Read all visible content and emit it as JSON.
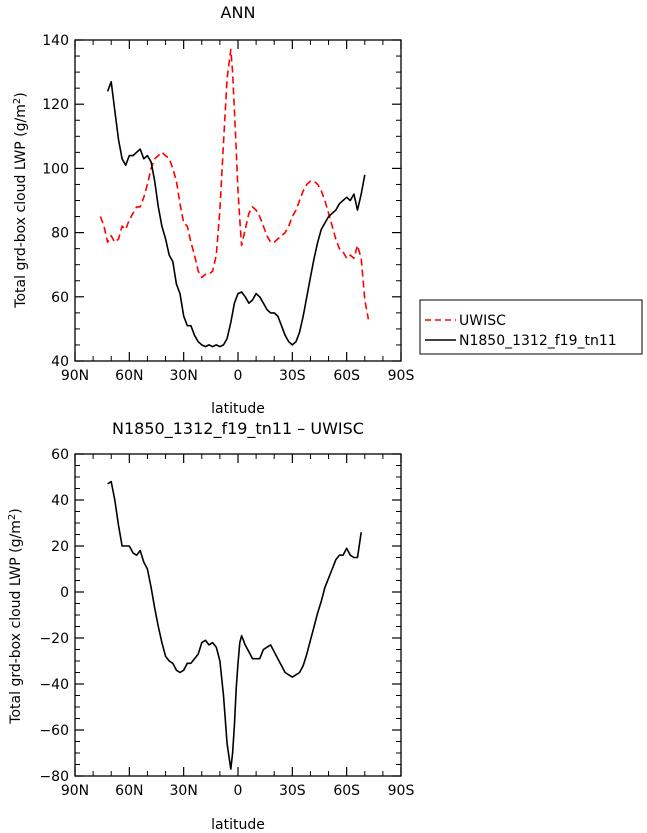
{
  "chart_data": [
    {
      "type": "line",
      "title": "ANN",
      "xlabel": "latitude",
      "ylabel": "Total grd-box cloud LWP (g/m²)",
      "xlim": [
        -90,
        90
      ],
      "ylim": [
        40,
        140
      ],
      "x_ticks": [
        -90,
        -60,
        -30,
        0,
        30,
        60,
        90
      ],
      "x_tick_labels": [
        "90N",
        "60N",
        "30N",
        "0",
        "30S",
        "60S",
        "90S"
      ],
      "y_ticks": [
        40,
        60,
        80,
        100,
        120,
        140
      ],
      "y_tick_labels": [
        "40",
        "60",
        "80",
        "100",
        "120",
        "140"
      ],
      "legend": "outside right",
      "series": [
        {
          "name": "UWISC",
          "color": "#ff0000",
          "style": "dashed",
          "points": [
            [
              -76,
              85
            ],
            [
              -74,
              82
            ],
            [
              -72,
              77
            ],
            [
              -70,
              79
            ],
            [
              -68,
              77
            ],
            [
              -66,
              78
            ],
            [
              -64,
              82
            ],
            [
              -62,
              81
            ],
            [
              -60,
              84
            ],
            [
              -58,
              86
            ],
            [
              -56,
              88
            ],
            [
              -54,
              88
            ],
            [
              -52,
              91
            ],
            [
              -50,
              95
            ],
            [
              -48,
              100
            ],
            [
              -46,
              103
            ],
            [
              -44,
              104
            ],
            [
              -42,
              105
            ],
            [
              -40,
              104
            ],
            [
              -38,
              103
            ],
            [
              -36,
              100
            ],
            [
              -34,
              96
            ],
            [
              -32,
              89
            ],
            [
              -30,
              83
            ],
            [
              -28,
              82
            ],
            [
              -26,
              77
            ],
            [
              -24,
              73
            ],
            [
              -22,
              68
            ],
            [
              -20,
              66
            ],
            [
              -18,
              67
            ],
            [
              -16,
              67
            ],
            [
              -14,
              68
            ],
            [
              -12,
              73
            ],
            [
              -10,
              87
            ],
            [
              -8,
              108
            ],
            [
              -6,
              128
            ],
            [
              -4,
              137
            ],
            [
              -3,
              130
            ],
            [
              -2,
              118
            ],
            [
              -1,
              106
            ],
            [
              0,
              93
            ],
            [
              1,
              84
            ],
            [
              2,
              76
            ],
            [
              4,
              81
            ],
            [
              6,
              86
            ],
            [
              8,
              88
            ],
            [
              10,
              87
            ],
            [
              12,
              85
            ],
            [
              14,
              82
            ],
            [
              16,
              79
            ],
            [
              18,
              77
            ],
            [
              20,
              77
            ],
            [
              22,
              78
            ],
            [
              24,
              79
            ],
            [
              26,
              80
            ],
            [
              28,
              82
            ],
            [
              30,
              85
            ],
            [
              32,
              87
            ],
            [
              34,
              90
            ],
            [
              36,
              93
            ],
            [
              38,
              95
            ],
            [
              40,
              96
            ],
            [
              42,
              96
            ],
            [
              44,
              95
            ],
            [
              46,
              93
            ],
            [
              48,
              90
            ],
            [
              50,
              86
            ],
            [
              52,
              82
            ],
            [
              54,
              78
            ],
            [
              56,
              75
            ],
            [
              58,
              74
            ],
            [
              60,
              72
            ],
            [
              62,
              73
            ],
            [
              64,
              72
            ],
            [
              66,
              76
            ],
            [
              68,
              72
            ],
            [
              70,
              59
            ],
            [
              72,
              53
            ]
          ]
        },
        {
          "name": "N1850_1312_f19_tn11",
          "color": "#000000",
          "style": "solid",
          "points": [
            [
              -72,
              124
            ],
            [
              -70,
              127
            ],
            [
              -68,
              118
            ],
            [
              -66,
              109
            ],
            [
              -64,
              103
            ],
            [
              -62,
              101
            ],
            [
              -60,
              104
            ],
            [
              -58,
              104
            ],
            [
              -56,
              105
            ],
            [
              -54,
              106
            ],
            [
              -52,
              103
            ],
            [
              -50,
              104
            ],
            [
              -48,
              102
            ],
            [
              -46,
              96
            ],
            [
              -44,
              88
            ],
            [
              -42,
              82
            ],
            [
              -40,
              78
            ],
            [
              -38,
              73
            ],
            [
              -36,
              71
            ],
            [
              -34,
              64
            ],
            [
              -32,
              61
            ],
            [
              -30,
              54
            ],
            [
              -28,
              51
            ],
            [
              -26,
              51
            ],
            [
              -24,
              48
            ],
            [
              -22,
              46
            ],
            [
              -20,
              45
            ],
            [
              -18,
              44.5
            ],
            [
              -16,
              45
            ],
            [
              -14,
              44.5
            ],
            [
              -12,
              45
            ],
            [
              -10,
              44.5
            ],
            [
              -8,
              45
            ],
            [
              -6,
              47
            ],
            [
              -4,
              52
            ],
            [
              -2,
              58
            ],
            [
              0,
              61
            ],
            [
              2,
              61.5
            ],
            [
              4,
              60
            ],
            [
              6,
              58
            ],
            [
              8,
              59
            ],
            [
              10,
              61
            ],
            [
              12,
              60
            ],
            [
              14,
              58
            ],
            [
              16,
              56
            ],
            [
              18,
              55
            ],
            [
              20,
              55
            ],
            [
              22,
              54
            ],
            [
              24,
              51
            ],
            [
              26,
              48
            ],
            [
              28,
              46
            ],
            [
              30,
              45
            ],
            [
              32,
              46
            ],
            [
              34,
              49
            ],
            [
              36,
              54
            ],
            [
              38,
              60
            ],
            [
              40,
              66
            ],
            [
              42,
              72
            ],
            [
              44,
              77
            ],
            [
              46,
              81
            ],
            [
              48,
              83
            ],
            [
              50,
              85
            ],
            [
              52,
              86
            ],
            [
              54,
              87
            ],
            [
              56,
              89
            ],
            [
              58,
              90
            ],
            [
              60,
              91
            ],
            [
              62,
              90
            ],
            [
              64,
              92
            ],
            [
              66,
              87
            ],
            [
              68,
              92
            ],
            [
              70,
              98
            ]
          ]
        }
      ]
    },
    {
      "type": "line",
      "title": "N1850_1312_f19_tn11 – UWISC",
      "xlabel": "latitude",
      "ylabel": "Total grd-box cloud LWP (g/m²)",
      "xlim": [
        -90,
        90
      ],
      "ylim": [
        -80,
        60
      ],
      "x_ticks": [
        -90,
        -60,
        -30,
        0,
        30,
        60,
        90
      ],
      "x_tick_labels": [
        "90N",
        "60N",
        "30N",
        "0",
        "30S",
        "60S",
        "90S"
      ],
      "y_ticks": [
        -80,
        -60,
        -40,
        -20,
        0,
        20,
        40,
        60
      ],
      "y_tick_labels": [
        "−80",
        "−60",
        "−40",
        "−20",
        "0",
        "20",
        "40",
        "60"
      ],
      "series": [
        {
          "color": "#000000",
          "style": "solid",
          "points": [
            [
              -72,
              47
            ],
            [
              -70,
              48
            ],
            [
              -68,
              40
            ],
            [
              -66,
              29
            ],
            [
              -64,
              20
            ],
            [
              -62,
              20
            ],
            [
              -60,
              20
            ],
            [
              -58,
              17
            ],
            [
              -56,
              16
            ],
            [
              -54,
              18
            ],
            [
              -52,
              13
            ],
            [
              -50,
              10
            ],
            [
              -48,
              2
            ],
            [
              -46,
              -7
            ],
            [
              -44,
              -15
            ],
            [
              -42,
              -22
            ],
            [
              -40,
              -28
            ],
            [
              -38,
              -30
            ],
            [
              -36,
              -31
            ],
            [
              -34,
              -34
            ],
            [
              -32,
              -35
            ],
            [
              -30,
              -34
            ],
            [
              -28,
              -31
            ],
            [
              -26,
              -31
            ],
            [
              -24,
              -29
            ],
            [
              -22,
              -27
            ],
            [
              -20,
              -22
            ],
            [
              -18,
              -21
            ],
            [
              -16,
              -23
            ],
            [
              -14,
              -22
            ],
            [
              -12,
              -24
            ],
            [
              -10,
              -30
            ],
            [
              -8,
              -45
            ],
            [
              -6,
              -66
            ],
            [
              -4,
              -77
            ],
            [
              -3,
              -70
            ],
            [
              -2,
              -58
            ],
            [
              -1,
              -42
            ],
            [
              0,
              -31
            ],
            [
              1,
              -22
            ],
            [
              2,
              -19
            ],
            [
              4,
              -23
            ],
            [
              6,
              -26
            ],
            [
              8,
              -29
            ],
            [
              10,
              -29
            ],
            [
              12,
              -29
            ],
            [
              14,
              -25
            ],
            [
              16,
              -24
            ],
            [
              18,
              -23
            ],
            [
              20,
              -26
            ],
            [
              22,
              -29
            ],
            [
              24,
              -32
            ],
            [
              26,
              -35
            ],
            [
              28,
              -36
            ],
            [
              30,
              -37
            ],
            [
              32,
              -36
            ],
            [
              34,
              -35
            ],
            [
              36,
              -32
            ],
            [
              38,
              -27
            ],
            [
              40,
              -21
            ],
            [
              42,
              -15
            ],
            [
              44,
              -9
            ],
            [
              46,
              -4
            ],
            [
              48,
              2
            ],
            [
              50,
              6
            ],
            [
              52,
              10
            ],
            [
              54,
              14
            ],
            [
              56,
              16
            ],
            [
              58,
              16
            ],
            [
              60,
              19
            ],
            [
              62,
              16
            ],
            [
              64,
              15
            ],
            [
              66,
              15
            ],
            [
              68,
              26
            ]
          ]
        }
      ]
    }
  ]
}
